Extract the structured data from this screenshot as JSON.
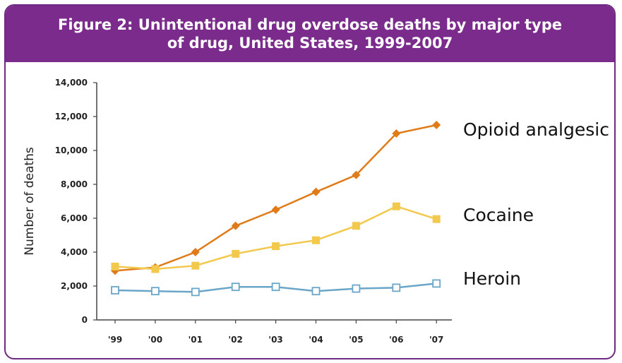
{
  "title_line1": "Figure 2: Unintentional drug overdose deaths by major type",
  "title_line2": "of drug, United States, 1999-2007",
  "chart_data": {
    "type": "line",
    "title": "Figure 2: Unintentional drug overdose deaths by major type of drug, United States, 1999-2007",
    "ylabel": "Number of deaths",
    "xlabel": "",
    "categories": [
      "'99",
      "'00",
      "'01",
      "'02",
      "'03",
      "'04",
      "'05",
      "'06",
      "'07"
    ],
    "ylim": [
      0,
      14000
    ],
    "yticks": [
      "0",
      "2,000",
      "4,000",
      "6,000",
      "8,000",
      "10,000",
      "12,000",
      "14,000"
    ],
    "ytick_values": [
      0,
      2000,
      4000,
      6000,
      8000,
      10000,
      12000,
      14000
    ],
    "grid": false,
    "series": [
      {
        "name": "Opioid analgesic",
        "color": "#e07b1a",
        "marker": "diamond",
        "values": [
          2900,
          3100,
          4000,
          5550,
          6500,
          7550,
          8550,
          11000,
          11500
        ]
      },
      {
        "name": "Cocaine",
        "color": "#f2c94c",
        "marker": "filled-square",
        "values": [
          3150,
          3000,
          3200,
          3900,
          4350,
          4700,
          5550,
          6700,
          5950
        ]
      },
      {
        "name": "Heroin",
        "color": "#6aa6c8",
        "marker": "open-square",
        "values": [
          1750,
          1700,
          1650,
          1950,
          1950,
          1700,
          1850,
          1900,
          2150
        ]
      }
    ]
  }
}
